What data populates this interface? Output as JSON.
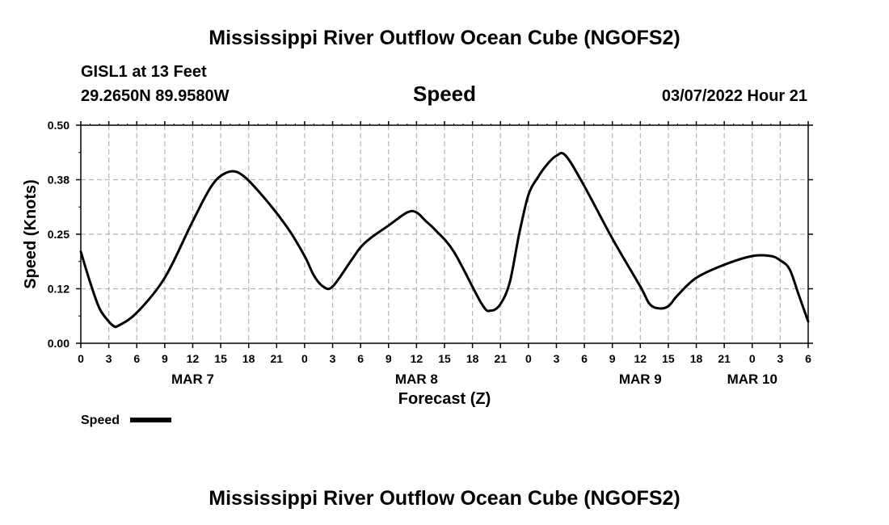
{
  "header": {
    "title": "Mississippi River Outflow Ocean Cube (NGOFS2)",
    "station": "GISL1 at 13 Feet",
    "coords": "29.2650N  89.9580W",
    "variable": "Speed",
    "datetime": "03/07/2022 Hour 21"
  },
  "footer": {
    "title": "Mississippi River Outflow Ocean Cube (NGOFS2)"
  },
  "legend": {
    "label": "Speed"
  },
  "colors": {
    "line": "#000000",
    "grid": "#b4b4b4",
    "background": "#ffffff"
  },
  "chart_data": {
    "type": "line",
    "title": "Speed",
    "xlabel": "Forecast (Z)",
    "ylabel": "Speed (Knots)",
    "x_unit": "hours from 2022-03-07 00Z",
    "xlim": [
      0,
      78
    ],
    "ylim": [
      0,
      0.5
    ],
    "y_ticks": [
      0.0,
      0.125,
      0.25,
      0.375,
      0.5
    ],
    "y_tick_labels": [
      "0.00",
      "0.12",
      "0.25",
      "0.38",
      "0.50"
    ],
    "x_ticks": [
      0,
      3,
      6,
      9,
      12,
      15,
      18,
      21,
      24,
      27,
      30,
      33,
      36,
      39,
      42,
      45,
      48,
      51,
      54,
      57,
      60,
      63,
      66,
      69,
      72,
      75,
      78
    ],
    "x_tick_labels": [
      "0",
      "3",
      "6",
      "9",
      "12",
      "15",
      "18",
      "21",
      "0",
      "3",
      "6",
      "9",
      "12",
      "15",
      "18",
      "21",
      "0",
      "3",
      "6",
      "9",
      "12",
      "15",
      "18",
      "21",
      "0",
      "3",
      "6"
    ],
    "day_labels": [
      {
        "x": 12,
        "label": "MAR 7"
      },
      {
        "x": 36,
        "label": "MAR 8"
      },
      {
        "x": 60,
        "label": "MAR 9"
      },
      {
        "x": 72,
        "label": "MAR 10"
      }
    ],
    "grid": true,
    "legend_position": "bottom-left",
    "series": [
      {
        "name": "Speed",
        "x": [
          0,
          1,
          2,
          3,
          3.5,
          4,
          6,
          9,
          12,
          14,
          15.5,
          17,
          19,
          22,
          24,
          25,
          26,
          27,
          29,
          30,
          31,
          33,
          35,
          36,
          37,
          38,
          40,
          43,
          44,
          45,
          46,
          47,
          48,
          49,
          50,
          51,
          52,
          54,
          57,
          60,
          61,
          62,
          63,
          64,
          66,
          69,
          72,
          74,
          75,
          76,
          77,
          78
        ],
        "y": [
          0.21,
          0.14,
          0.08,
          0.05,
          0.04,
          0.04,
          0.07,
          0.15,
          0.28,
          0.36,
          0.39,
          0.39,
          0.35,
          0.27,
          0.2,
          0.155,
          0.13,
          0.13,
          0.19,
          0.22,
          0.24,
          0.27,
          0.3,
          0.3,
          0.28,
          0.26,
          0.21,
          0.09,
          0.075,
          0.09,
          0.14,
          0.25,
          0.34,
          0.38,
          0.41,
          0.43,
          0.43,
          0.36,
          0.24,
          0.13,
          0.09,
          0.08,
          0.085,
          0.11,
          0.15,
          0.18,
          0.2,
          0.2,
          0.19,
          0.17,
          0.11,
          0.05
        ]
      }
    ]
  }
}
